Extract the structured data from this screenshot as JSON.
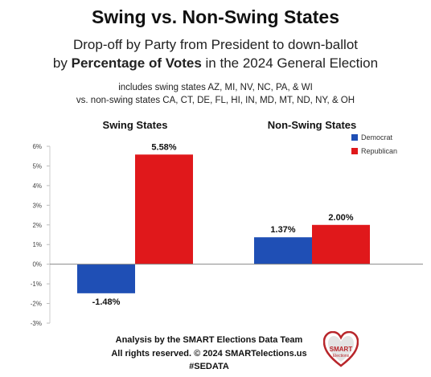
{
  "header": {
    "title": "Swing vs. Non-Swing States",
    "subtitle_line1": "Drop-off by Party from President to down-ballot",
    "subtitle_line2_pre": "by ",
    "subtitle_line2_bold": "Percentage of Votes",
    "subtitle_line2_post": " in the 2024 General Election",
    "note_line1": "includes swing states AZ, MI, NV, NC, PA, & WI",
    "note_line2": "vs. non-swing states CA, CT, DE, FL, HI, IN, MD, MT, ND, NY, & OH"
  },
  "chart_data": {
    "type": "bar",
    "categories": [
      "Swing States",
      "Non-Swing States"
    ],
    "series": [
      {
        "name": "Democrat",
        "color": "#1f4fb5",
        "values": [
          -1.48,
          1.37
        ],
        "labels": [
          "-1.48%",
          "1.37%"
        ]
      },
      {
        "name": "Republican",
        "color": "#e0181b",
        "values": [
          5.58,
          2.0
        ],
        "labels": [
          "5.58%",
          "2.00%"
        ]
      }
    ],
    "ylim": [
      -3,
      6
    ],
    "yticks": [
      6,
      5,
      4,
      3,
      2,
      1,
      0,
      -1,
      -2,
      -3
    ],
    "ytick_labels": [
      "6%",
      "5%",
      "4%",
      "3%",
      "2%",
      "1%",
      "0%",
      "-1%",
      "-2%",
      "-3%"
    ],
    "legend_position": "top-right"
  },
  "footer": {
    "line1": "Analysis by the SMART Elections Data Team",
    "line2": "All rights reserved. © 2024 SMARTelections.us",
    "line3": "#SEDATA"
  },
  "logo": {
    "text": "SMART Elections",
    "color": "#b8262b"
  }
}
